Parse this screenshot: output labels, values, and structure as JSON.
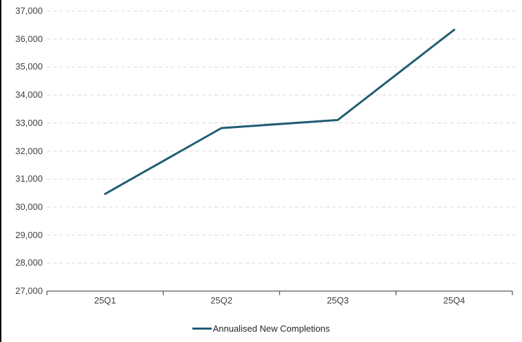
{
  "chart_data": {
    "type": "line",
    "title": "",
    "xlabel": "",
    "ylabel": "",
    "categories": [
      "25Q1",
      "25Q2",
      "25Q3",
      "25Q4"
    ],
    "series": [
      {
        "name": "Annualised New Completions",
        "values": [
          30470,
          32820,
          33110,
          36330
        ]
      }
    ],
    "ylim": [
      27000,
      37000
    ],
    "ytick_step": 1000,
    "ytick_labels": [
      "27,000",
      "28,000",
      "29,000",
      "30,000",
      "31,000",
      "32,000",
      "33,000",
      "34,000",
      "35,000",
      "36,000",
      "37,000"
    ],
    "grid": "horizontal-dashed",
    "legend_position": "bottom-center",
    "colors": {
      "line": "#1F5C73",
      "axis": "#595959",
      "gridline": "#D9D9D9",
      "text": "#3F3F3F",
      "background": "#FFFFFF",
      "left_border": "#000000"
    }
  }
}
